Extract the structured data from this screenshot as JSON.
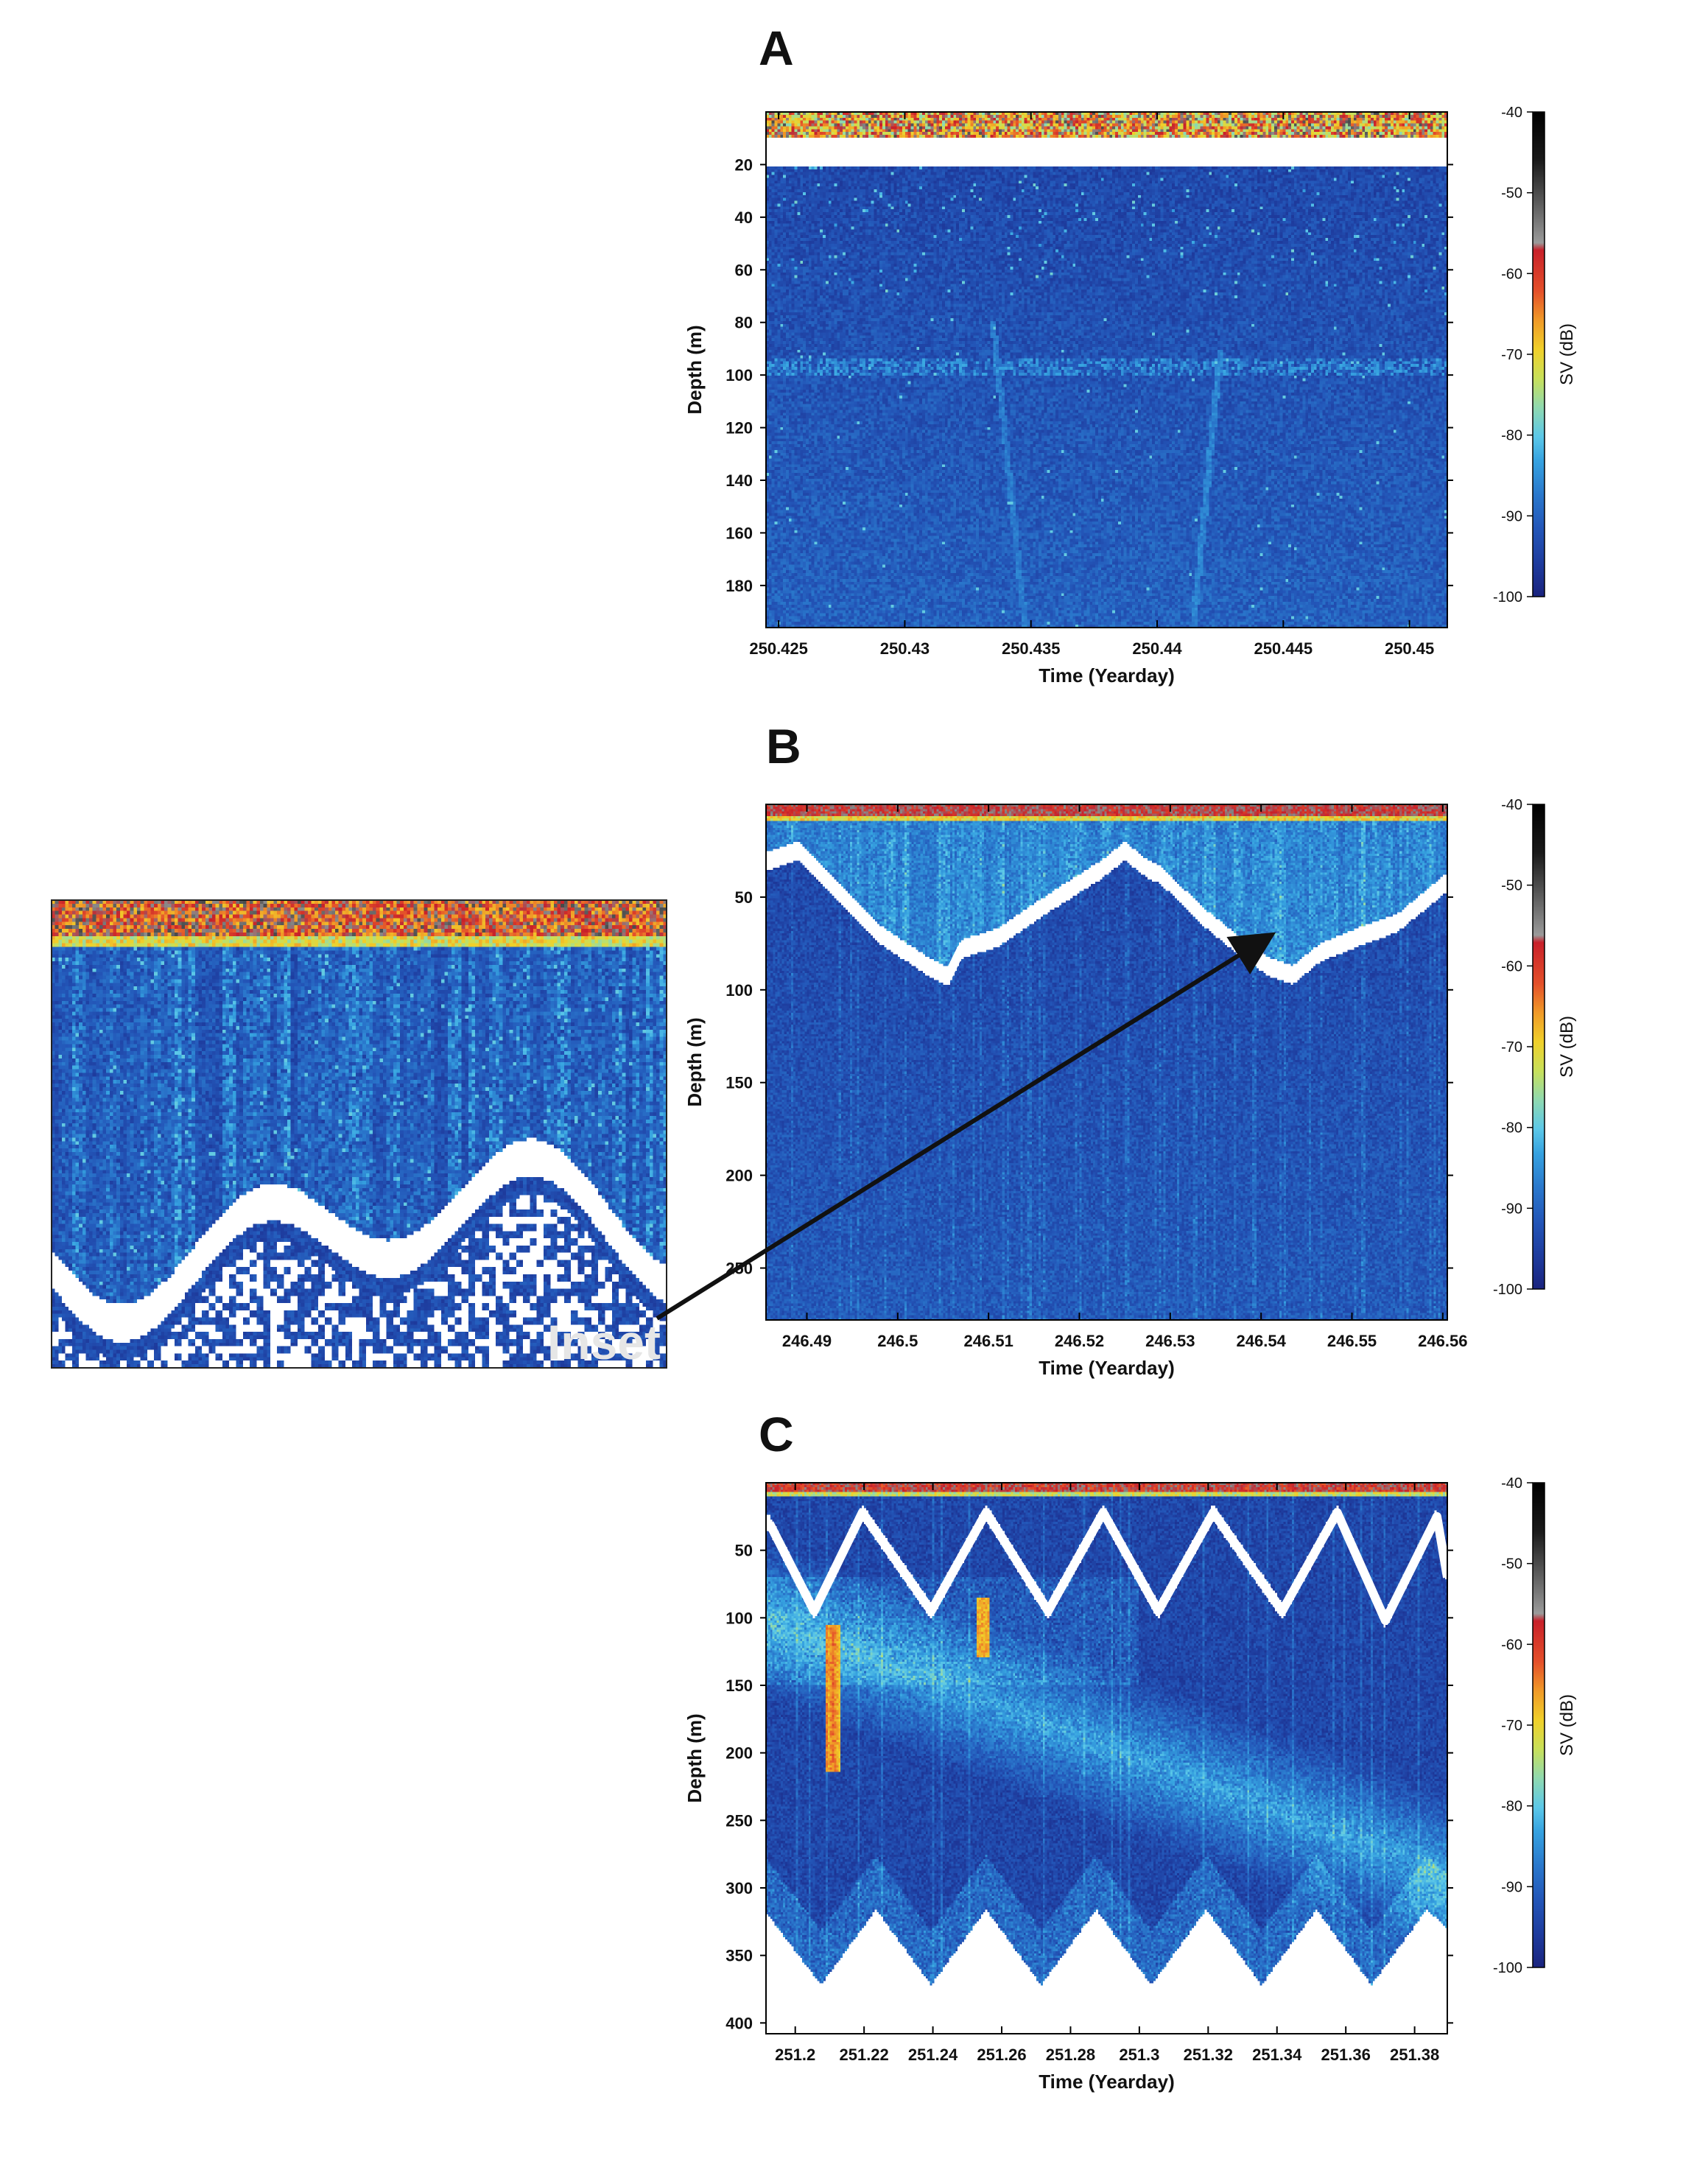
{
  "colormap": [
    "#1a237e",
    "#1e3c9e",
    "#2356b8",
    "#2a78cc",
    "#36a2e0",
    "#5cc8e8",
    "#8fd9b0",
    "#c8e05a",
    "#f0d02a",
    "#f09a28",
    "#e4502a",
    "#c8202a",
    "#8a8a8a",
    "#3c3c3c",
    "#000000"
  ],
  "inset": {
    "label": "Inset"
  },
  "chart_data": [
    {
      "panel": "A",
      "type": "heatmap",
      "xlabel": "Time (Yearday)",
      "ylabel": "Depth (m)",
      "xlim": [
        250.4245,
        250.4515
      ],
      "ylim": [
        196,
        0
      ],
      "x_ticks": [
        "250.425",
        "250.43",
        "250.435",
        "250.44",
        "250.445",
        "250.45"
      ],
      "x_tick_values": [
        250.425,
        250.43,
        250.435,
        250.44,
        250.445,
        250.45
      ],
      "y_ticks": [
        "20",
        "40",
        "60",
        "80",
        "100",
        "120",
        "140",
        "160",
        "180"
      ],
      "y_tick_values": [
        20,
        40,
        60,
        80,
        100,
        120,
        140,
        160,
        180
      ],
      "colorbar": {
        "label": "SV (dB)",
        "range": [
          -100,
          -40
        ],
        "ticks": [
          "-40",
          "-50",
          "-60",
          "-70",
          "-80",
          "-90",
          "-100"
        ]
      },
      "glider_track": [],
      "features": "surface noise band 0-10 m; weak scattering; faint layer near 95-100 m"
    },
    {
      "panel": "B",
      "type": "heatmap",
      "xlabel": "Time (Yearday)",
      "ylabel": "Depth (m)",
      "xlim": [
        246.4855,
        246.5605
      ],
      "ylim": [
        278,
        0
      ],
      "x_ticks": [
        "246.49",
        "246.5",
        "246.51",
        "246.52",
        "246.53",
        "246.54",
        "246.55",
        "246.56"
      ],
      "x_tick_values": [
        246.49,
        246.5,
        246.51,
        246.52,
        246.53,
        246.54,
        246.55,
        246.56
      ],
      "y_ticks": [
        "50",
        "100",
        "150",
        "200",
        "250"
      ],
      "y_tick_values": [
        50,
        100,
        150,
        200,
        250
      ],
      "colorbar": {
        "label": "SV (dB)",
        "range": [
          -100,
          -40
        ],
        "ticks": [
          "-40",
          "-50",
          "-60",
          "-70",
          "-80",
          "-90",
          "-100"
        ]
      },
      "glider_track": [
        [
          246.486,
          30
        ],
        [
          246.489,
          25
        ],
        [
          246.493,
          45
        ],
        [
          246.498,
          70
        ],
        [
          246.5035,
          88
        ],
        [
          246.5055,
          93
        ],
        [
          246.507,
          78
        ],
        [
          246.511,
          72
        ],
        [
          246.517,
          52
        ],
        [
          246.5225,
          35
        ],
        [
          246.525,
          25
        ],
        [
          246.5275,
          35
        ],
        [
          246.529,
          38
        ],
        [
          246.533,
          58
        ],
        [
          246.5375,
          76
        ],
        [
          246.541,
          88
        ],
        [
          246.5435,
          92
        ],
        [
          246.5465,
          80
        ],
        [
          246.5505,
          72
        ],
        [
          246.555,
          64
        ],
        [
          246.5605,
          42
        ]
      ],
      "features": "surface band 0-10 m; weak scattering above 70 m; bubbly vertical streaks"
    },
    {
      "panel": "C",
      "type": "heatmap",
      "xlabel": "Time (Yearday)",
      "ylabel": "Depth (m)",
      "xlim": [
        251.1915,
        251.3895
      ],
      "ylim": [
        408,
        0
      ],
      "x_ticks": [
        "251.2",
        "251.22",
        "251.24",
        "251.26",
        "251.28",
        "251.3",
        "251.32",
        "251.34",
        "251.36",
        "251.38"
      ],
      "x_tick_values": [
        251.2,
        251.22,
        251.24,
        251.26,
        251.28,
        251.3,
        251.32,
        251.34,
        251.36,
        251.38
      ],
      "y_ticks": [
        "50",
        "100",
        "150",
        "200",
        "250",
        "300",
        "350",
        "400"
      ],
      "y_tick_values": [
        50,
        100,
        150,
        200,
        250,
        300,
        350,
        400
      ],
      "colorbar": {
        "label": "SV (dB)",
        "range": [
          -100,
          -40
        ],
        "ticks": [
          "-40",
          "-50",
          "-60",
          "-70",
          "-80",
          "-90",
          "-100"
        ]
      },
      "glider_track": [
        [
          251.1925,
          30
        ],
        [
          251.2055,
          95
        ],
        [
          251.2195,
          22
        ],
        [
          251.2395,
          95
        ],
        [
          251.2555,
          22
        ],
        [
          251.2735,
          95
        ],
        [
          251.2895,
          22
        ],
        [
          251.3055,
          95
        ],
        [
          251.3215,
          22
        ],
        [
          251.3415,
          95
        ],
        [
          251.3575,
          22
        ],
        [
          251.3715,
          102
        ],
        [
          251.3865,
          25
        ],
        [
          251.3895,
          70
        ]
      ],
      "seafloor": [
        [
          251.1915,
          318
        ],
        [
          251.2075,
          372
        ],
        [
          251.2235,
          316
        ],
        [
          251.2395,
          372
        ],
        [
          251.2555,
          316
        ],
        [
          251.2715,
          372
        ],
        [
          251.2875,
          316
        ],
        [
          251.3035,
          372
        ],
        [
          251.3195,
          316
        ],
        [
          251.3355,
          372
        ],
        [
          251.3515,
          316
        ],
        [
          251.3675,
          372
        ],
        [
          251.3835,
          316
        ],
        [
          251.3895,
          330
        ]
      ],
      "features": "scattering layer deepening from ~100 m to ~280 m; high-SV patch ~251.211, 110-210 m"
    }
  ]
}
